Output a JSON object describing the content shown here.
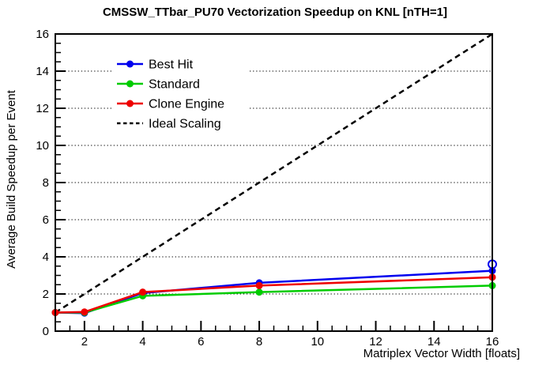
{
  "page": {
    "background": "#ffffff"
  },
  "chart_data": {
    "type": "line",
    "title": "CMSSW_TTbar_PU70 Vectorization Speedup on KNL [nTH=1]",
    "xlabel": "Matriplex Vector Width [floats]",
    "ylabel": "Average Build Speedup per Event",
    "xlim": [
      1,
      16
    ],
    "ylim": [
      0,
      16
    ],
    "x_ticks_major": [
      2,
      4,
      6,
      8,
      10,
      12,
      14,
      16
    ],
    "y_ticks_major": [
      0,
      2,
      4,
      6,
      8,
      10,
      12,
      14,
      16
    ],
    "minor_tick_step": 0.5,
    "grid": {
      "style": "dotted-horizontal",
      "at_y": [
        2,
        4,
        6,
        8,
        10,
        12,
        14
      ],
      "color": "#000000"
    },
    "x": [
      1,
      2,
      4,
      8,
      16
    ],
    "series": [
      {
        "name": "Best Hit",
        "color": "#0000ee",
        "marker": "filled-circle",
        "values": [
          1.0,
          0.97,
          2.05,
          2.6,
          3.25
        ],
        "extra_open_marker": {
          "x": 16,
          "y": 3.6
        }
      },
      {
        "name": "Standard",
        "color": "#00cc00",
        "marker": "filled-circle",
        "values": [
          1.0,
          1.0,
          1.9,
          2.1,
          2.45
        ]
      },
      {
        "name": "Clone Engine",
        "color": "#ee0000",
        "marker": "filled-circle",
        "values": [
          1.0,
          1.03,
          2.1,
          2.45,
          2.9
        ]
      }
    ],
    "ideal": {
      "name": "Ideal Scaling",
      "color": "#000000",
      "style": "dashed",
      "x": [
        1,
        16
      ],
      "values": [
        1,
        16
      ]
    },
    "legend": {
      "position": "upper-left-inside",
      "entries": [
        "Best Hit",
        "Standard",
        "Clone Engine",
        "Ideal Scaling"
      ]
    }
  }
}
